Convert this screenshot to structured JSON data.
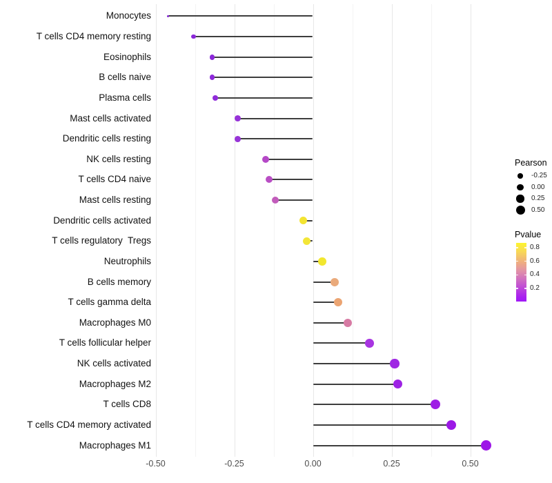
{
  "chart_data": {
    "type": "lollipop",
    "orientation": "horizontal",
    "title": "",
    "xlabel": "",
    "ylabel": "",
    "grid": "vertical-major-and-minor",
    "background": "#ffffff",
    "stem_color": "#3d3d3d",
    "x_ticks": [
      -0.5,
      -0.25,
      0,
      0.25,
      0.5
    ],
    "x_tick_labels": [
      "-0.50",
      "-0.25",
      "0.00",
      "0.25",
      "0.50"
    ],
    "xlim": [
      -0.51,
      0.6
    ],
    "size_encoding": "Pearson correlation (dot size)",
    "color_encoding": "P value (dot color)",
    "series": [
      {
        "name": "Monocytes",
        "pearson": -0.46,
        "color": "#8526D6"
      },
      {
        "name": "T cells CD4 memory resting",
        "pearson": -0.38,
        "color": "#8A28D8"
      },
      {
        "name": "Eosinophils",
        "pearson": -0.32,
        "color": "#8C29D9"
      },
      {
        "name": "B cells naive",
        "pearson": -0.32,
        "color": "#8E2ADA"
      },
      {
        "name": "Plasma cells",
        "pearson": -0.31,
        "color": "#902CDA"
      },
      {
        "name": "Mast cells activated",
        "pearson": -0.24,
        "color": "#9632D8"
      },
      {
        "name": "Dendritic cells resting",
        "pearson": -0.24,
        "color": "#9734D7"
      },
      {
        "name": "NK cells resting",
        "pearson": -0.15,
        "color": "#B548C7"
      },
      {
        "name": "T cells CD4 naive",
        "pearson": -0.14,
        "color": "#B94EC4"
      },
      {
        "name": "Mast cells resting",
        "pearson": -0.12,
        "color": "#C25CBB"
      },
      {
        "name": "Dendritic cells activated",
        "pearson": -0.03,
        "color": "#F3E431"
      },
      {
        "name": "T cells regulatory  Tregs",
        "pearson": -0.02,
        "color": "#F3E637"
      },
      {
        "name": "Neutrophils",
        "pearson": 0.03,
        "color": "#F2E72E"
      },
      {
        "name": "B cells memory",
        "pearson": 0.07,
        "color": "#EAAA7B"
      },
      {
        "name": "T cells gamma delta",
        "pearson": 0.08,
        "color": "#EBA472"
      },
      {
        "name": "Macrophages M0",
        "pearson": 0.11,
        "color": "#D77BA4"
      },
      {
        "name": "T cells follicular helper",
        "pearson": 0.18,
        "color": "#A835E1"
      },
      {
        "name": "NK cells activated",
        "pearson": 0.26,
        "color": "#9F28E3"
      },
      {
        "name": "Macrophages M2",
        "pearson": 0.27,
        "color": "#9D22E4"
      },
      {
        "name": "T cells CD8",
        "pearson": 0.39,
        "color": "#9E1DE5"
      },
      {
        "name": "T cells CD4 memory activated",
        "pearson": 0.44,
        "color": "#9C19E6"
      },
      {
        "name": "Macrophages M1",
        "pearson": 0.55,
        "color": "#9D15E7"
      }
    ],
    "legend_position": "right",
    "legend": {
      "size": {
        "title": "Pearson",
        "tick_labels": [
          "-0.25",
          "0.00",
          "0.25",
          "0.50"
        ],
        "tick_values": [
          -0.25,
          0.0,
          0.25,
          0.5
        ],
        "dot_color": "#000000"
      },
      "color": {
        "title": "Pvalue",
        "tick_labels": [
          "0.8",
          "0.6",
          "0.4",
          "0.2"
        ],
        "tick_values": [
          0.8,
          0.6,
          0.4,
          0.2
        ],
        "range": [
          0.01,
          0.87
        ],
        "gradient_stops": [
          {
            "pos": 0,
            "color": "#FDF52F"
          },
          {
            "pos": 14,
            "color": "#F8DA55"
          },
          {
            "pos": 33,
            "color": "#EFAE80"
          },
          {
            "pos": 47,
            "color": "#E293A6"
          },
          {
            "pos": 62,
            "color": "#D06FC0"
          },
          {
            "pos": 78,
            "color": "#BC45DA"
          },
          {
            "pos": 92,
            "color": "#A921EF"
          },
          {
            "pos": 100,
            "color": "#A019F7"
          }
        ]
      }
    }
  }
}
